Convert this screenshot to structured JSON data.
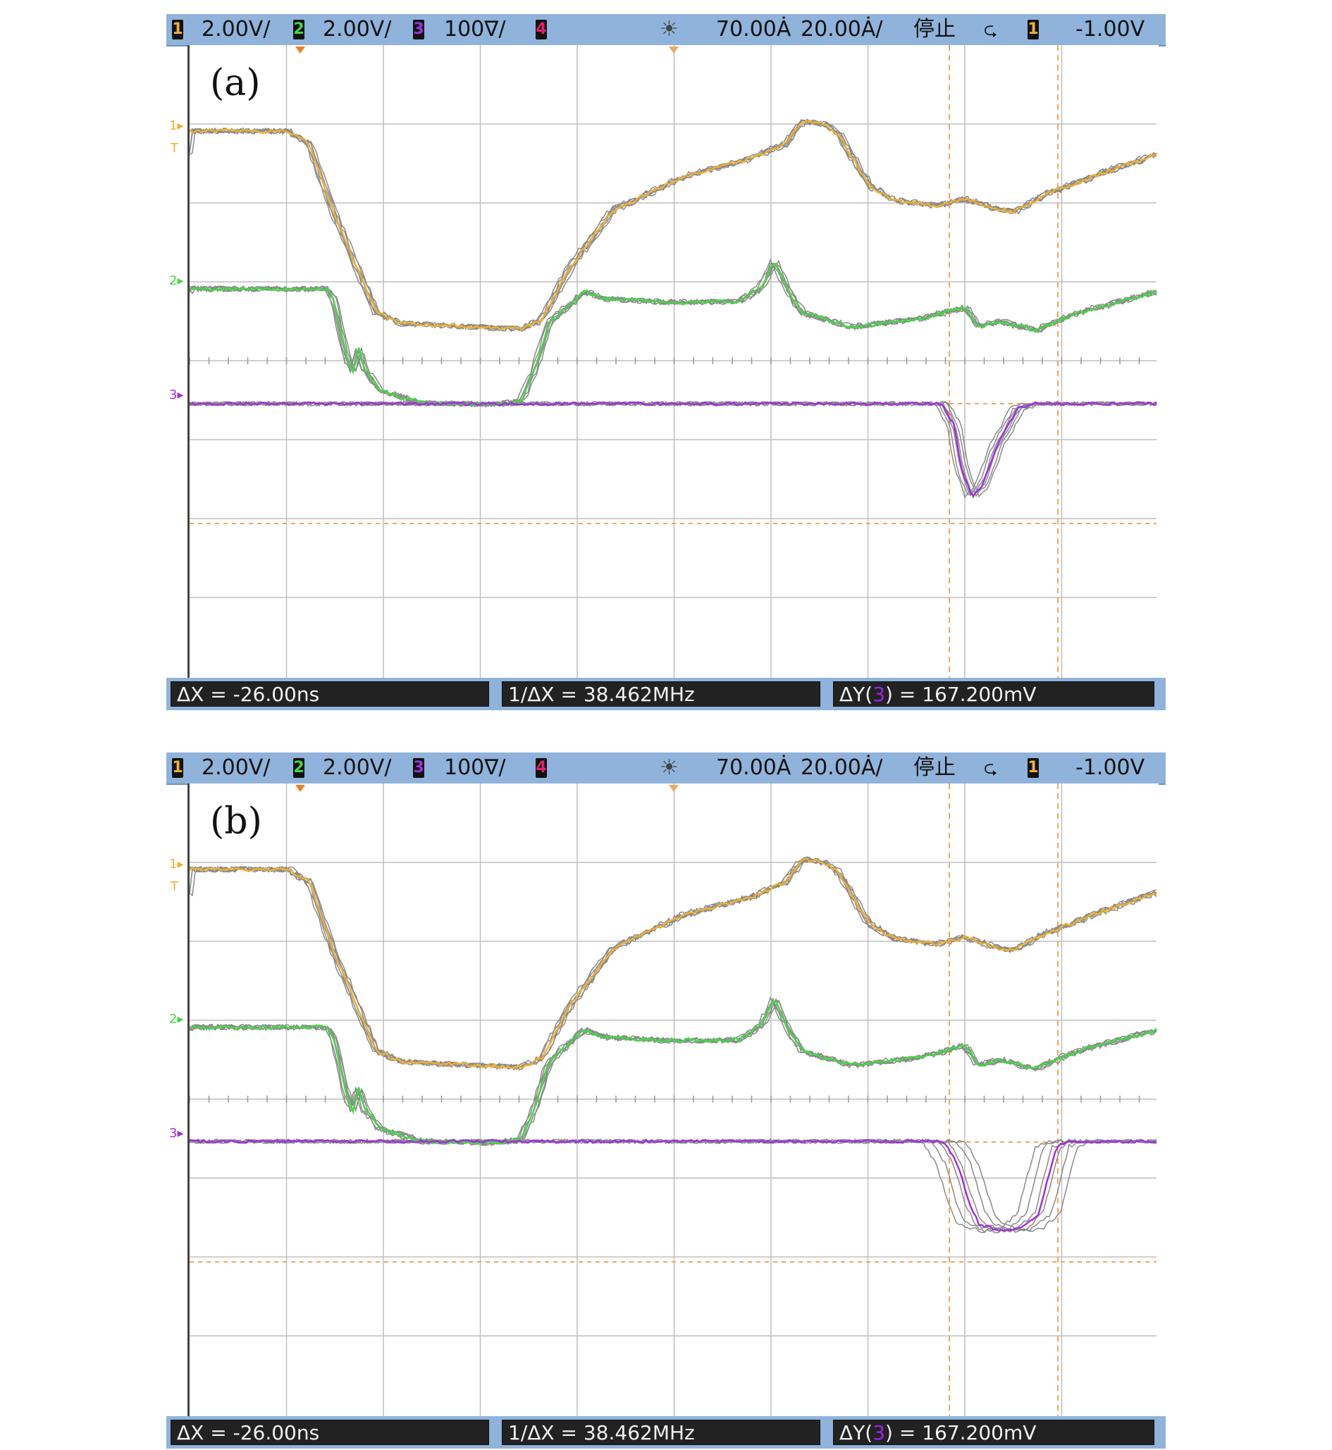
{
  "panels": [
    {
      "id": "a",
      "label": "(a)",
      "topbar": {
        "ch1_num": "1",
        "ch1_scale": "2.00V/",
        "ch2_num": "2",
        "ch2_scale": "2.00V/",
        "ch3_num": "3",
        "ch3_scale": "100∇/",
        "ch4_num": "4",
        "brightness_icon": "☀",
        "time_offset": "70.00Ȧ",
        "time_scale": "20.00Ȧ/",
        "run_state": "停止",
        "trigger_icon": "⮎",
        "trigger_ch_num": "1",
        "trigger_level": "-1.00V"
      },
      "measurements": {
        "dx": "ΔX = -26.00ns",
        "inv_dx": "1/ΔX = 38.462MHz",
        "dy_prefix": "ΔY(",
        "dy_ch": "3",
        "dy_suffix": ") = 167.200mV"
      },
      "channel_markers": {
        "ch1": "1▸",
        "trig": "T",
        "ch2": "2▸",
        "ch3": "3▸"
      }
    },
    {
      "id": "b",
      "label": "(b)",
      "topbar": {
        "ch1_num": "1",
        "ch1_scale": "2.00V/",
        "ch2_num": "2",
        "ch2_scale": "2.00V/",
        "ch3_num": "3",
        "ch3_scale": "100∇/",
        "ch4_num": "4",
        "brightness_icon": "☀",
        "time_offset": "70.00Ȧ",
        "time_scale": "20.00Ȧ/",
        "run_state": "停止",
        "trigger_icon": "⮎",
        "trigger_ch_num": "1",
        "trigger_level": "-1.00V"
      },
      "measurements": {
        "dx": "ΔX = -26.00ns",
        "inv_dx": "1/ΔX = 38.462MHz",
        "dy_prefix": "ΔY(",
        "dy_ch": "3",
        "dy_suffix": ") = 167.200mV"
      },
      "channel_markers": {
        "ch1": "1▸",
        "trig": "T",
        "ch2": "2▸",
        "ch3": "3▸"
      }
    }
  ],
  "colors": {
    "ch1": "#f0b030",
    "ch2": "#44d844",
    "ch3": "#a030e0",
    "ch4": "#e0206a",
    "cursor": "#f0a860",
    "grid": "#bfbfbf",
    "topbar": "#8fb3db"
  }
}
